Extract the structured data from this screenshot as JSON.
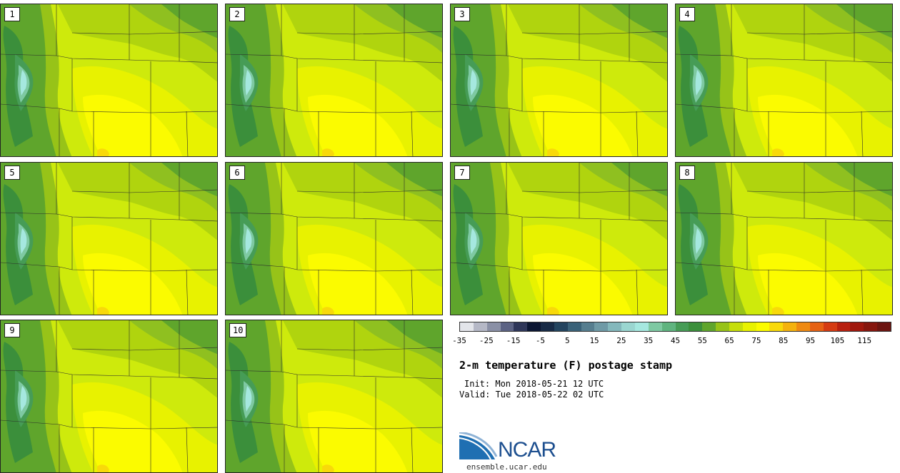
{
  "panels": [
    {
      "label": "1"
    },
    {
      "label": "2"
    },
    {
      "label": "3"
    },
    {
      "label": "4"
    },
    {
      "label": "5"
    },
    {
      "label": "6"
    },
    {
      "label": "7"
    },
    {
      "label": "8"
    },
    {
      "label": "9"
    },
    {
      "label": "10"
    }
  ],
  "colorbar": {
    "colors": [
      "#e3e5ea",
      "#b5b8c6",
      "#8a90a6",
      "#5c6384",
      "#2e3659",
      "#0b1633",
      "#172a46",
      "#23445f",
      "#3a6279",
      "#567e8f",
      "#6f9aa6",
      "#84b8bc",
      "#9ad6d0",
      "#a5e8df",
      "#7ec9a2",
      "#5fb47f",
      "#469c56",
      "#3b8f3b",
      "#5fa52c",
      "#97c318",
      "#c6de0a",
      "#e8f200",
      "#fbfb00",
      "#f8d90a",
      "#f4b20e",
      "#ef8a12",
      "#e66214",
      "#d53b12",
      "#b8200f",
      "#a0180d",
      "#86160e",
      "#6c1410"
    ],
    "tick_labels": [
      "-35",
      "-25",
      "-15",
      "-5",
      "5",
      "15",
      "25",
      "35",
      "45",
      "55",
      "65",
      "75",
      "85",
      "95",
      "105",
      "115"
    ]
  },
  "info": {
    "title": "2-m temperature (F) postage stamp",
    "init": "Init: Mon 2018-05-21 12 UTC",
    "valid": "Valid: Tue 2018-05-22 02 UTC"
  },
  "logo": {
    "name": "NCAR",
    "site": "ensemble.ucar.edu"
  }
}
